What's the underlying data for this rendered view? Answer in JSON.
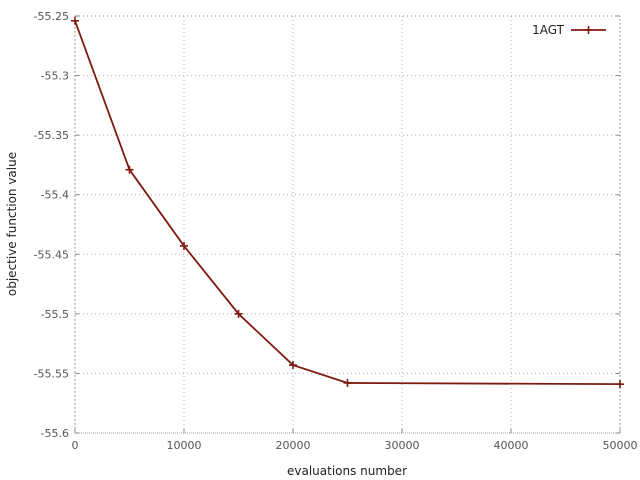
{
  "chart_data": {
    "type": "line",
    "xlabel": "evaluations number",
    "ylabel": "objective function value",
    "xlim": [
      0,
      50000
    ],
    "ylim": [
      -55.6,
      -55.25
    ],
    "x_ticks": [
      0,
      10000,
      20000,
      30000,
      40000,
      50000
    ],
    "x_tick_labels": [
      "0",
      "10000",
      "20000",
      "30000",
      "40000",
      "50000"
    ],
    "y_ticks": [
      -55.25,
      -55.3,
      -55.35,
      -55.4,
      -55.45,
      -55.5,
      -55.55,
      -55.6
    ],
    "y_tick_labels": [
      "-55.25",
      "-55.3",
      "-55.35",
      "-55.4",
      "-55.45",
      "-55.5",
      "-55.55",
      "-55.6"
    ],
    "grid": true,
    "legend_position": "top-right",
    "series": [
      {
        "name": "1AGT",
        "color": "#7f1a10",
        "marker": "plus",
        "x": [
          0,
          5000,
          10000,
          15000,
          20000,
          25000,
          50000
        ],
        "y": [
          -55.254,
          -55.379,
          -55.443,
          -55.5,
          -55.543,
          -55.558,
          -55.559
        ]
      }
    ]
  }
}
